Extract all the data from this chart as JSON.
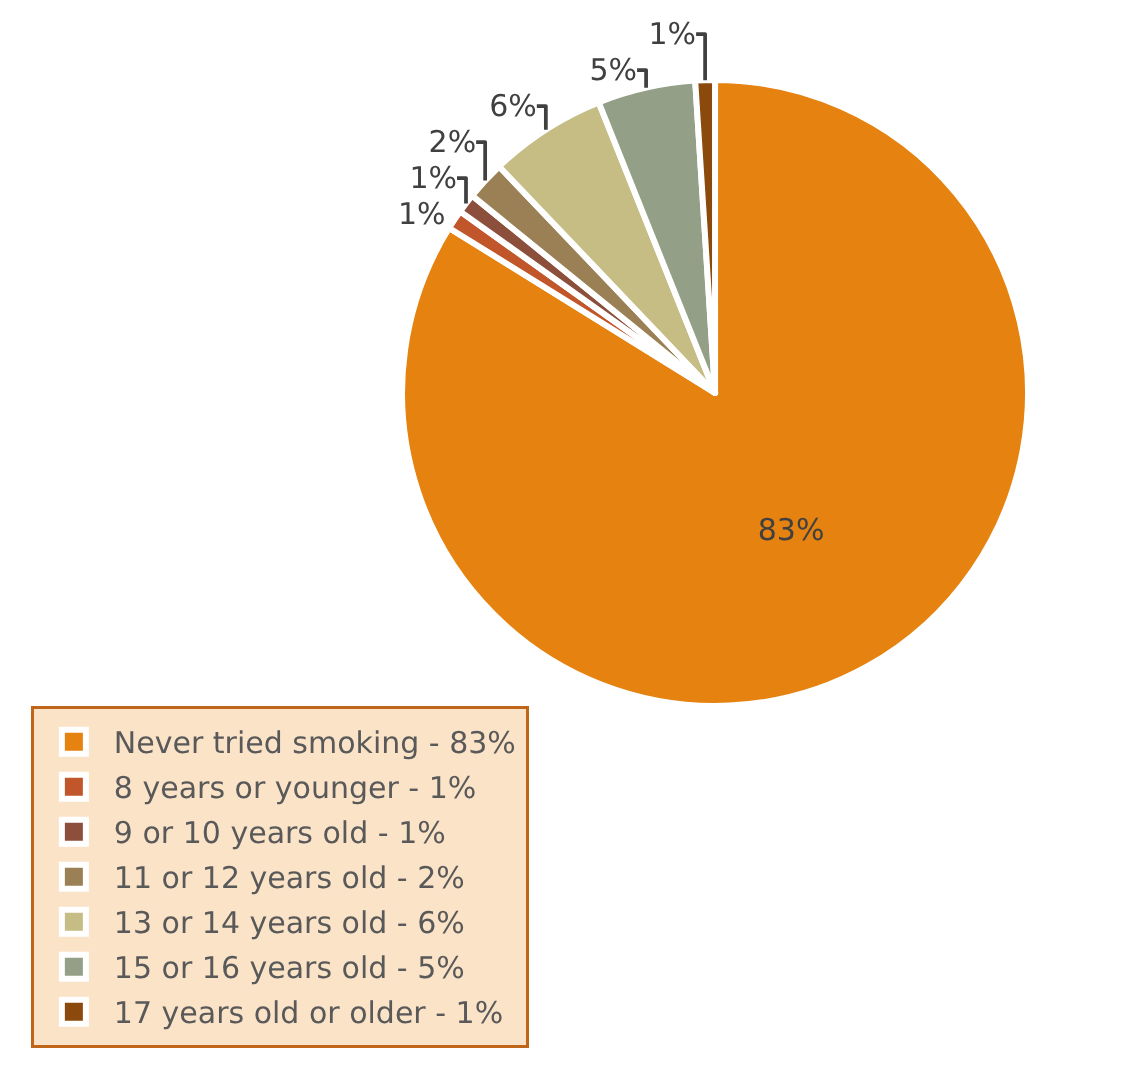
{
  "chart_data": {
    "type": "pie",
    "categories": [
      "Never tried smoking - 83%",
      "8 years or younger - 1%",
      "9 or 10 years old - 1%",
      "11 or 12 years old - 2%",
      "13 or 14 years old - 6%",
      "15 or 16 years old - 5%",
      "17 years old or older - 1%"
    ],
    "values": [
      83,
      1,
      1,
      2,
      6,
      5,
      1
    ],
    "colors": [
      "#e6820f",
      "#c0562a",
      "#8b4f3c",
      "#9b8055",
      "#c5bd84",
      "#939f86",
      "#8b4a0c"
    ],
    "value_labels": [
      "83%",
      "1%",
      "1%",
      "2%",
      "6%",
      "5%",
      "1%"
    ],
    "legend": "bottom left"
  }
}
